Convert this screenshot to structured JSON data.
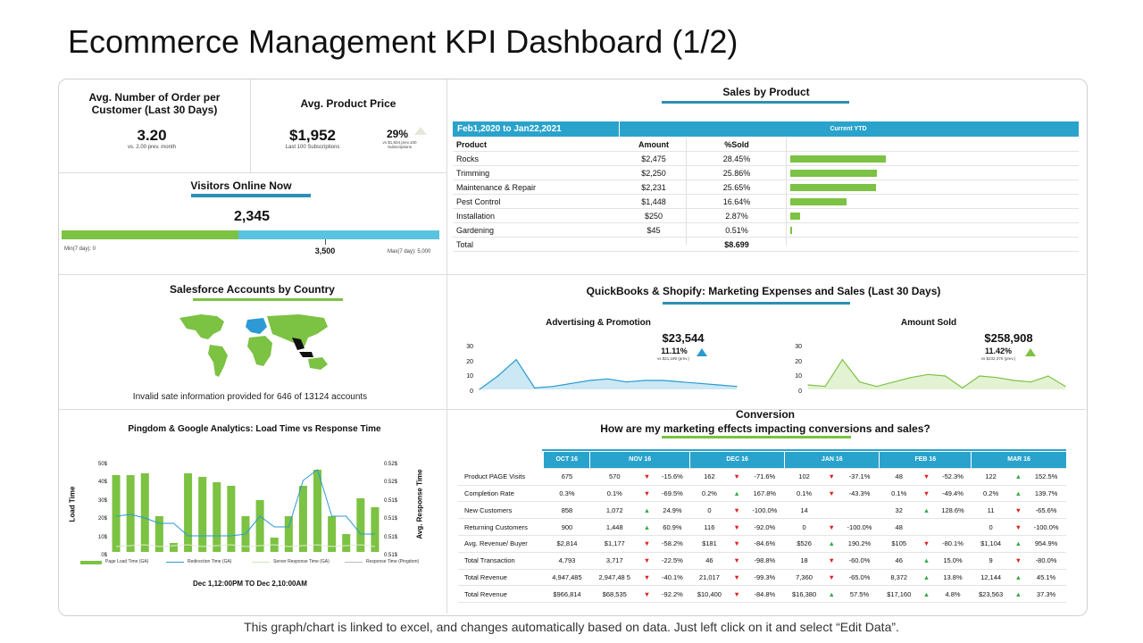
{
  "page": {
    "title": "Ecommerce Management KPI Dashboard (1/2)",
    "footer": "This graph/chart is linked to excel, and changes automatically based on data. Just left click on it and select “Edit Data”."
  },
  "orders": {
    "title": "Avg. Number of Order per Customer (Last 30 Days)",
    "value": "3.20",
    "sub": "vs. 2.00 prev. month"
  },
  "price": {
    "title": "Avg. Product Price",
    "value": "$1,952",
    "sub": "Last 100 Subscriptions",
    "pct": "29%",
    "pct_sub": "vs $1,504 prev.100 Subscriptions"
  },
  "visitors": {
    "title": "Visitors Online Now",
    "value": "2,345",
    "mid": "3,500",
    "min_label": "Min(7 day): 0",
    "max_label": "Max(7 day): 5,000",
    "fill_fraction": 0.469
  },
  "sales_by_product": {
    "title": "Sales by Product",
    "range": "Feb1,2020 to Jan22,2021",
    "current": "Current YTD",
    "headers": [
      "Product",
      "Amount",
      "%Sold"
    ],
    "rows": [
      {
        "product": "Rocks",
        "amount": "$2,475",
        "pct": "28.45%",
        "share": 28.45
      },
      {
        "product": "Trimming",
        "amount": "$2,250",
        "pct": "25.86%",
        "share": 25.86
      },
      {
        "product": "Maintenance & Repair",
        "amount": "$2,231",
        "pct": "25.65%",
        "share": 25.65
      },
      {
        "product": "Pest Control",
        "amount": "$1,448",
        "pct": "16.64%",
        "share": 16.64
      },
      {
        "product": "Installation",
        "amount": "$250",
        "pct": "2.87%",
        "share": 2.87
      },
      {
        "product": "Gardening",
        "amount": "$45",
        "pct": "0.51%",
        "share": 0.51
      }
    ],
    "total_label": "Total",
    "total_value": "$8.699"
  },
  "salesforce": {
    "title": "Salesforce Accounts by Country",
    "note": "Invalid sate information provided for 646 of 13124 accounts"
  },
  "quickbooks": {
    "title": "QuickBooks & Shopify:  Marketing Expenses and Sales (Last 30 Days)",
    "adv": {
      "title": "Advertising & Promotion",
      "value": "$23,544",
      "pct": "11.11%",
      "sub": "vs $21,189 (prev.)",
      "yticks": [
        "30",
        "20",
        "10",
        "0"
      ],
      "points": [
        0,
        9,
        20,
        1,
        2,
        4,
        6,
        7,
        5,
        6,
        6,
        5,
        4,
        3,
        2
      ]
    },
    "sold": {
      "title": "Amount Sold",
      "value": "$258,908",
      "pct": "11.42%",
      "sub": "vs $232,370 (prev.)",
      "yticks": [
        "30",
        "20",
        "10",
        "0"
      ],
      "points": [
        3,
        2,
        20,
        5,
        2,
        5,
        8,
        10,
        9,
        1,
        9,
        8,
        6,
        5,
        9,
        2
      ]
    }
  },
  "pingdom": {
    "title": "Pingdom & Google Analytics: Load Time vs Response Time",
    "ylabel_left": "Load Time",
    "ylabel_right": "Avg. Response Time",
    "yticks_left": [
      "50$",
      "40$",
      "30$",
      "20$",
      "10$",
      "0$"
    ],
    "yticks_right": [
      "0.52$",
      "0.52$",
      "0.51$",
      "0.51$",
      "0.51$",
      "0.51$"
    ],
    "legend": [
      "Page Load Time (GA)",
      "Redirection Time (GA)",
      "Server Response Time (GA)",
      "Response Time (Pingdom)"
    ],
    "range": "Dec 1,12:00PM  TO Dec 2,10:00AM"
  },
  "conversion": {
    "title": "Conversion",
    "subtitle": "How are my marketing effects impacting conversions and sales?",
    "months": [
      "OCT 16",
      "NOV 16",
      "DEC 16",
      "JAN 16",
      "FEB 16",
      "MAR 16"
    ],
    "rows": [
      {
        "label": "Product PAGE Visits",
        "oct": "675",
        "cells": [
          [
            "570",
            "dn",
            "-15.6%"
          ],
          [
            "162",
            "dn",
            "-71.6%"
          ],
          [
            "102",
            "dn",
            "-37.1%"
          ],
          [
            "48",
            "dn",
            "-52.3%"
          ],
          [
            "122",
            "up",
            "152.5%"
          ]
        ]
      },
      {
        "label": "Completion Rate",
        "oct": "0.3%",
        "cells": [
          [
            "0.1%",
            "dn",
            "-69.5%"
          ],
          [
            "0.2%",
            "up",
            "167.8%"
          ],
          [
            "0.1%",
            "dn",
            "-43.3%"
          ],
          [
            "0.1%",
            "dn",
            "-49.4%"
          ],
          [
            "0.2%",
            "up",
            "139.7%"
          ]
        ]
      },
      {
        "label": "New Customers",
        "oct": "858",
        "cells": [
          [
            "1,072",
            "up",
            "24.9%"
          ],
          [
            "0",
            "dn",
            "-100.0%"
          ],
          [
            "14",
            "",
            ""
          ],
          [
            "32",
            "up",
            "128.6%"
          ],
          [
            "11",
            "dn",
            "-65.6%"
          ]
        ]
      },
      {
        "label": "Returning Customers",
        "oct": "900",
        "cells": [
          [
            "1,448",
            "up",
            "60.9%"
          ],
          [
            "116",
            "dn",
            "-92.0%"
          ],
          [
            "0",
            "dn",
            "-100.0%"
          ],
          [
            "48",
            "",
            ""
          ],
          [
            "0",
            "dn",
            "-100.0%"
          ]
        ]
      },
      {
        "label": "Avg. Revenue/ Buyer",
        "oct": "$2,814",
        "cells": [
          [
            "$1,177",
            "dn",
            "-58.2%"
          ],
          [
            "$181",
            "dn",
            "-84.6%"
          ],
          [
            "$526",
            "up",
            "190.2%"
          ],
          [
            "$105",
            "dn",
            "-80.1%"
          ],
          [
            "$1,104",
            "up",
            "954.9%"
          ]
        ]
      },
      {
        "label": "Total Transaction",
        "oct": "4,793",
        "cells": [
          [
            "3,717",
            "dn",
            "-22.5%"
          ],
          [
            "46",
            "dn",
            "-98.8%"
          ],
          [
            "18",
            "dn",
            "-60.0%"
          ],
          [
            "46",
            "up",
            "15.0%"
          ],
          [
            "9",
            "dn",
            "-80.0%"
          ]
        ]
      },
      {
        "label": "Total Revenue",
        "oct": "4,947,485",
        "cells": [
          [
            "2,947,48 5",
            "dn",
            "-40.1%"
          ],
          [
            "21,017",
            "dn",
            "-99.3%"
          ],
          [
            "7,360",
            "dn",
            "-65.0%"
          ],
          [
            "8,372",
            "up",
            "13.8%"
          ],
          [
            "12,144",
            "up",
            "45.1%"
          ]
        ]
      },
      {
        "label": "Total Revenue",
        "oct": "$966,814",
        "cells": [
          [
            "$68,535",
            "dn",
            "-92.2%"
          ],
          [
            "$10,400",
            "dn",
            "-84.8%"
          ],
          [
            "$16,380",
            "up",
            "57.5%"
          ],
          [
            "$17,160",
            "up",
            "4.8%"
          ],
          [
            "$23,563",
            "up",
            "37.3%"
          ]
        ]
      }
    ]
  },
  "chart_data": [
    {
      "type": "bar",
      "title": "Sales by Product",
      "categories": [
        "Rocks",
        "Trimming",
        "Maintenance & Repair",
        "Pest Control",
        "Installation",
        "Gardening"
      ],
      "values": [
        28.45,
        25.86,
        25.65,
        16.64,
        2.87,
        0.51
      ]
    },
    {
      "type": "area",
      "title": "Advertising & Promotion",
      "ylim": [
        0,
        30
      ],
      "values": [
        0,
        9,
        20,
        1,
        2,
        4,
        6,
        7,
        5,
        6,
        6,
        5,
        4,
        3,
        2
      ]
    },
    {
      "type": "area",
      "title": "Amount Sold",
      "ylim": [
        0,
        30
      ],
      "values": [
        3,
        2,
        20,
        5,
        2,
        5,
        8,
        10,
        9,
        1,
        9,
        8,
        6,
        5,
        9,
        2
      ]
    },
    {
      "type": "bar",
      "title": "Pingdom & Google Analytics: Load Time vs Response Time",
      "series": [
        {
          "name": "Page Load Time (GA)",
          "values": [
            43,
            43,
            44,
            20,
            5,
            44,
            42,
            39,
            37,
            20,
            29,
            8,
            20,
            37,
            46,
            20,
            10,
            30,
            25
          ]
        },
        {
          "name": "Redirection Time (GA)",
          "values": [
            20,
            21,
            19,
            16,
            16,
            9,
            9,
            9,
            9,
            10,
            20,
            14,
            14,
            40,
            46,
            20,
            20,
            10,
            10
          ]
        }
      ]
    }
  ]
}
